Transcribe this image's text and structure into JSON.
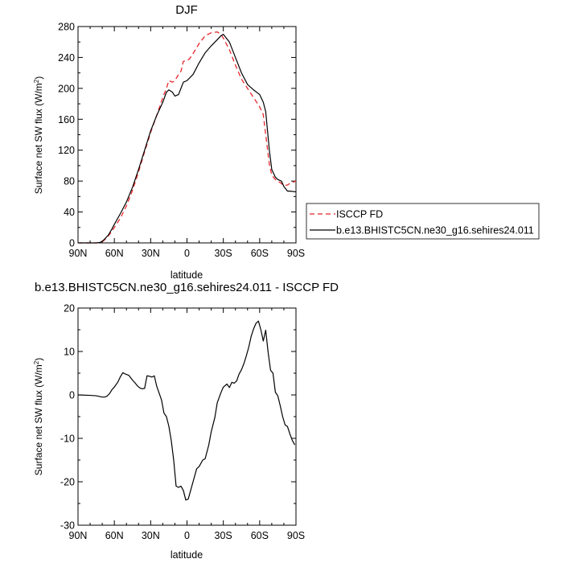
{
  "chart_data": [
    {
      "type": "line",
      "title": "DJF",
      "xlabel": "latitude",
      "ylabel": "Surface net SW flux (W/m",
      "ylabel_sup": "2",
      "ylabel_end": ")",
      "xlim": [
        90,
        -90
      ],
      "ylim": [
        0,
        280
      ],
      "xticks": [
        90,
        60,
        30,
        0,
        -30,
        -60,
        -90
      ],
      "xtick_labels": [
        "90N",
        "60N",
        "30N",
        "0",
        "30S",
        "60S",
        "90S"
      ],
      "yticks": [
        0,
        40,
        80,
        120,
        160,
        200,
        240,
        280
      ],
      "ytick_labels": [
        "0",
        "40",
        "80",
        "120",
        "160",
        "200",
        "240",
        "280"
      ],
      "legend_position": "right",
      "colors": {
        "isccp": "#e8262a",
        "model": "#000000"
      },
      "series": [
        {
          "name": "ISCCP FD",
          "style": "dashed",
          "x": [
            90,
            85,
            80,
            75,
            72,
            70,
            68,
            65,
            62,
            60,
            55,
            50,
            45,
            40,
            35,
            30,
            25,
            20,
            17,
            15,
            12,
            10,
            7,
            5,
            3,
            0,
            -2,
            -5,
            -10,
            -15,
            -20,
            -25,
            -28,
            -30,
            -35,
            -40,
            -45,
            -50,
            -55,
            -60,
            -63,
            -65,
            -68,
            -70,
            -73,
            -75,
            -78,
            -80,
            -83,
            -85,
            -90
          ],
          "y": [
            0,
            0,
            0,
            0,
            0.5,
            1.5,
            4,
            9,
            15,
            20,
            32,
            48,
            68,
            92,
            118,
            143,
            165,
            188,
            200,
            210,
            208,
            210,
            218,
            222,
            235,
            236,
            238,
            245,
            258,
            268,
            272,
            273,
            270,
            265,
            250,
            230,
            212,
            200,
            188,
            176,
            166,
            140,
            102,
            88,
            82,
            80,
            77,
            74,
            75,
            77,
            80
          ]
        },
        {
          "name": "b.e13.BHISTC5CN.ne30_g16.sehires24.011",
          "style": "solid",
          "x": [
            90,
            85,
            80,
            75,
            72,
            70,
            68,
            65,
            62,
            60,
            55,
            50,
            45,
            40,
            35,
            30,
            25,
            20,
            17,
            15,
            12,
            10,
            7,
            5,
            3,
            0,
            -5,
            -10,
            -15,
            -20,
            -25,
            -28,
            -30,
            -35,
            -40,
            -45,
            -50,
            -55,
            -60,
            -63,
            -65,
            -68,
            -70,
            -73,
            -75,
            -78,
            -80,
            -83,
            -85,
            -90
          ],
          "y": [
            0,
            0,
            0,
            0,
            0.5,
            2,
            5,
            10,
            18,
            24,
            38,
            53,
            72,
            95,
            120,
            145,
            165,
            182,
            195,
            198,
            195,
            190,
            192,
            200,
            208,
            210,
            218,
            233,
            246,
            255,
            263,
            268,
            270,
            260,
            240,
            220,
            205,
            198,
            192,
            182,
            170,
            120,
            95,
            85,
            82,
            80,
            73,
            67,
            67,
            66
          ]
        }
      ]
    },
    {
      "type": "line",
      "title": "b.e13.BHISTC5CN.ne30_g16.sehires24.011 - ISCCP FD",
      "xlabel": "latitude",
      "ylabel": "Surface net SW flux (W/m",
      "ylabel_sup": "2",
      "ylabel_end": ")",
      "xlim": [
        90,
        -90
      ],
      "ylim": [
        -30,
        20
      ],
      "xticks": [
        90,
        60,
        30,
        0,
        -30,
        -60,
        -90
      ],
      "xtick_labels": [
        "90N",
        "60N",
        "30N",
        "0",
        "30S",
        "60S",
        "90S"
      ],
      "yticks": [
        -30,
        -20,
        -10,
        0,
        10,
        20
      ],
      "ytick_labels": [
        "-30",
        "-20",
        "-10",
        "0",
        "10",
        "20"
      ],
      "series": [
        {
          "style": "solid",
          "x": [
            90,
            80,
            75,
            70,
            68,
            66,
            64,
            62,
            60,
            57,
            55,
            53,
            50,
            48,
            45,
            43,
            41,
            39,
            37,
            35,
            33,
            31,
            29,
            27,
            25,
            23,
            21,
            19,
            17,
            15,
            13,
            11,
            9,
            7,
            5,
            3,
            1,
            -1,
            -3,
            -5,
            -8,
            -10,
            -13,
            -15,
            -18,
            -20,
            -23,
            -25,
            -28,
            -30,
            -33,
            -35,
            -37,
            -39,
            -41,
            -43,
            -45,
            -47,
            -49,
            -51,
            -53,
            -55,
            -57,
            -59,
            -61,
            -63,
            -65,
            -67,
            -69,
            -71,
            -73,
            -75,
            -77,
            -79,
            -81,
            -83,
            -85,
            -87,
            -89
          ],
          "y": [
            0,
            -0.1,
            -0.2,
            -0.5,
            -0.5,
            -0.3,
            0.3,
            1.2,
            1.8,
            3.0,
            4.2,
            5.1,
            4.7,
            4.5,
            3.4,
            2.8,
            2.1,
            1.6,
            1.4,
            1.5,
            4.4,
            4.3,
            4.1,
            4.4,
            2.0,
            0.4,
            -1.2,
            -4.2,
            -5.0,
            -7.2,
            -10.5,
            -15.0,
            -21.0,
            -21.3,
            -21.0,
            -22.0,
            -24.2,
            -24.0,
            -22.0,
            -20.0,
            -17.0,
            -16.5,
            -15.0,
            -14.7,
            -11.5,
            -8.5,
            -5.2,
            -1.8,
            0.5,
            1.8,
            2.5,
            1.7,
            2.9,
            2.7,
            3.2,
            4.8,
            5.8,
            7.2,
            9.0,
            11.0,
            13.5,
            15.2,
            16.5,
            17.0,
            15.0,
            12.4,
            14.9,
            9.8,
            5.7,
            5.0,
            0.6,
            -0.2,
            -2.5,
            -5.0,
            -6.9,
            -7.3,
            -9.0,
            -10.5,
            -11.5
          ]
        }
      ]
    }
  ]
}
